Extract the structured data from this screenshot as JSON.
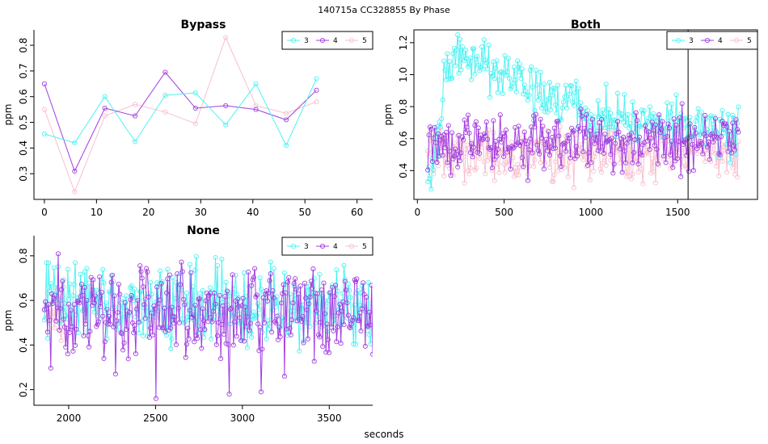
{
  "figure_title": "140715a    CC328855   By Phase",
  "xlabel": "seconds",
  "colors": {
    "3": "#4ef2f2",
    "4": "#a23fe0",
    "5": "#f7c0cf"
  },
  "chart_data": [
    {
      "type": "line",
      "title": "Bypass",
      "ylabel": "ppm",
      "xlim": [
        -2,
        63
      ],
      "ylim": [
        0.2,
        0.86
      ],
      "xticks": [
        0,
        10,
        20,
        30,
        40,
        50,
        60
      ],
      "yticks": [
        0.3,
        0.4,
        0.5,
        0.6,
        0.7,
        0.8
      ],
      "legend": [
        "3",
        "4",
        "5"
      ],
      "legend_position": "top-right",
      "series": [
        {
          "name": "3",
          "x": [
            0,
            5.8,
            11.6,
            17.4,
            23.2,
            29,
            34.8,
            40.6,
            46.4,
            52.2
          ],
          "values": [
            0.455,
            0.42,
            0.6,
            0.425,
            0.605,
            0.615,
            0.49,
            0.65,
            0.41,
            0.67
          ]
        },
        {
          "name": "4",
          "x": [
            0,
            5.8,
            11.6,
            17.4,
            23.2,
            29,
            34.8,
            40.6,
            46.4,
            52.2
          ],
          "values": [
            0.65,
            0.31,
            0.555,
            0.525,
            0.695,
            0.555,
            0.565,
            0.55,
            0.51,
            0.625
          ]
        },
        {
          "name": "5",
          "x": [
            0,
            5.8,
            11.6,
            17.4,
            23.2,
            29,
            34.8,
            40.6,
            46.4,
            52.2
          ],
          "values": [
            0.55,
            0.23,
            0.525,
            0.57,
            0.54,
            0.495,
            0.83,
            0.565,
            0.535,
            0.58
          ]
        }
      ]
    },
    {
      "type": "line",
      "title": "Both",
      "ylabel": "ppm",
      "xlim": [
        -20,
        1960
      ],
      "ylim": [
        0.22,
        1.28
      ],
      "xticks": [
        0,
        500,
        1000,
        1500
      ],
      "yticks": [
        0.4,
        0.6,
        0.8,
        1.0,
        1.2
      ],
      "vline_x": 1560,
      "legend": [
        "3",
        "4",
        "5"
      ],
      "legend_position": "top-right",
      "point_count": 300,
      "series": [
        {
          "name": "3",
          "x_range": [
            60,
            1850
          ],
          "profile_x": [
            60,
            120,
            150,
            260,
            400,
            600,
            800,
            1000,
            1300,
            1850
          ],
          "profile_mean": [
            0.4,
            0.5,
            1.05,
            1.12,
            1.05,
            0.95,
            0.85,
            0.75,
            0.7,
            0.65
          ],
          "spread": 0.1
        },
        {
          "name": "4",
          "x_range": [
            60,
            1850
          ],
          "mean": 0.58,
          "spread": 0.11
        },
        {
          "name": "5",
          "x_range": [
            60,
            1850
          ],
          "mean": 0.5,
          "spread": 0.1
        }
      ]
    },
    {
      "type": "line",
      "title": "None",
      "ylabel": "ppm",
      "xlim": [
        1800,
        3750
      ],
      "ylim": [
        0.13,
        0.89
      ],
      "xticks": [
        2000,
        2500,
        3000,
        3500
      ],
      "yticks": [
        0.2,
        0.4,
        0.6,
        0.8
      ],
      "legend": [
        "3",
        "4",
        "5"
      ],
      "legend_position": "top-right",
      "point_count": 320,
      "series": [
        {
          "name": "3",
          "x_range": [
            1860,
            3750
          ],
          "mean": 0.58,
          "spread": 0.11
        },
        {
          "name": "4",
          "x_range": [
            1860,
            3750
          ],
          "mean": 0.55,
          "spread": 0.12,
          "outliers": [
            [
              2505,
              0.16
            ],
            [
              2925,
              0.18
            ],
            [
              3105,
              0.19
            ],
            [
              2270,
              0.27
            ],
            [
              3245,
              0.26
            ]
          ]
        },
        {
          "name": "5",
          "x_range": [
            1860,
            1990
          ],
          "mean": 0.53,
          "spread": 0.08
        }
      ]
    }
  ]
}
